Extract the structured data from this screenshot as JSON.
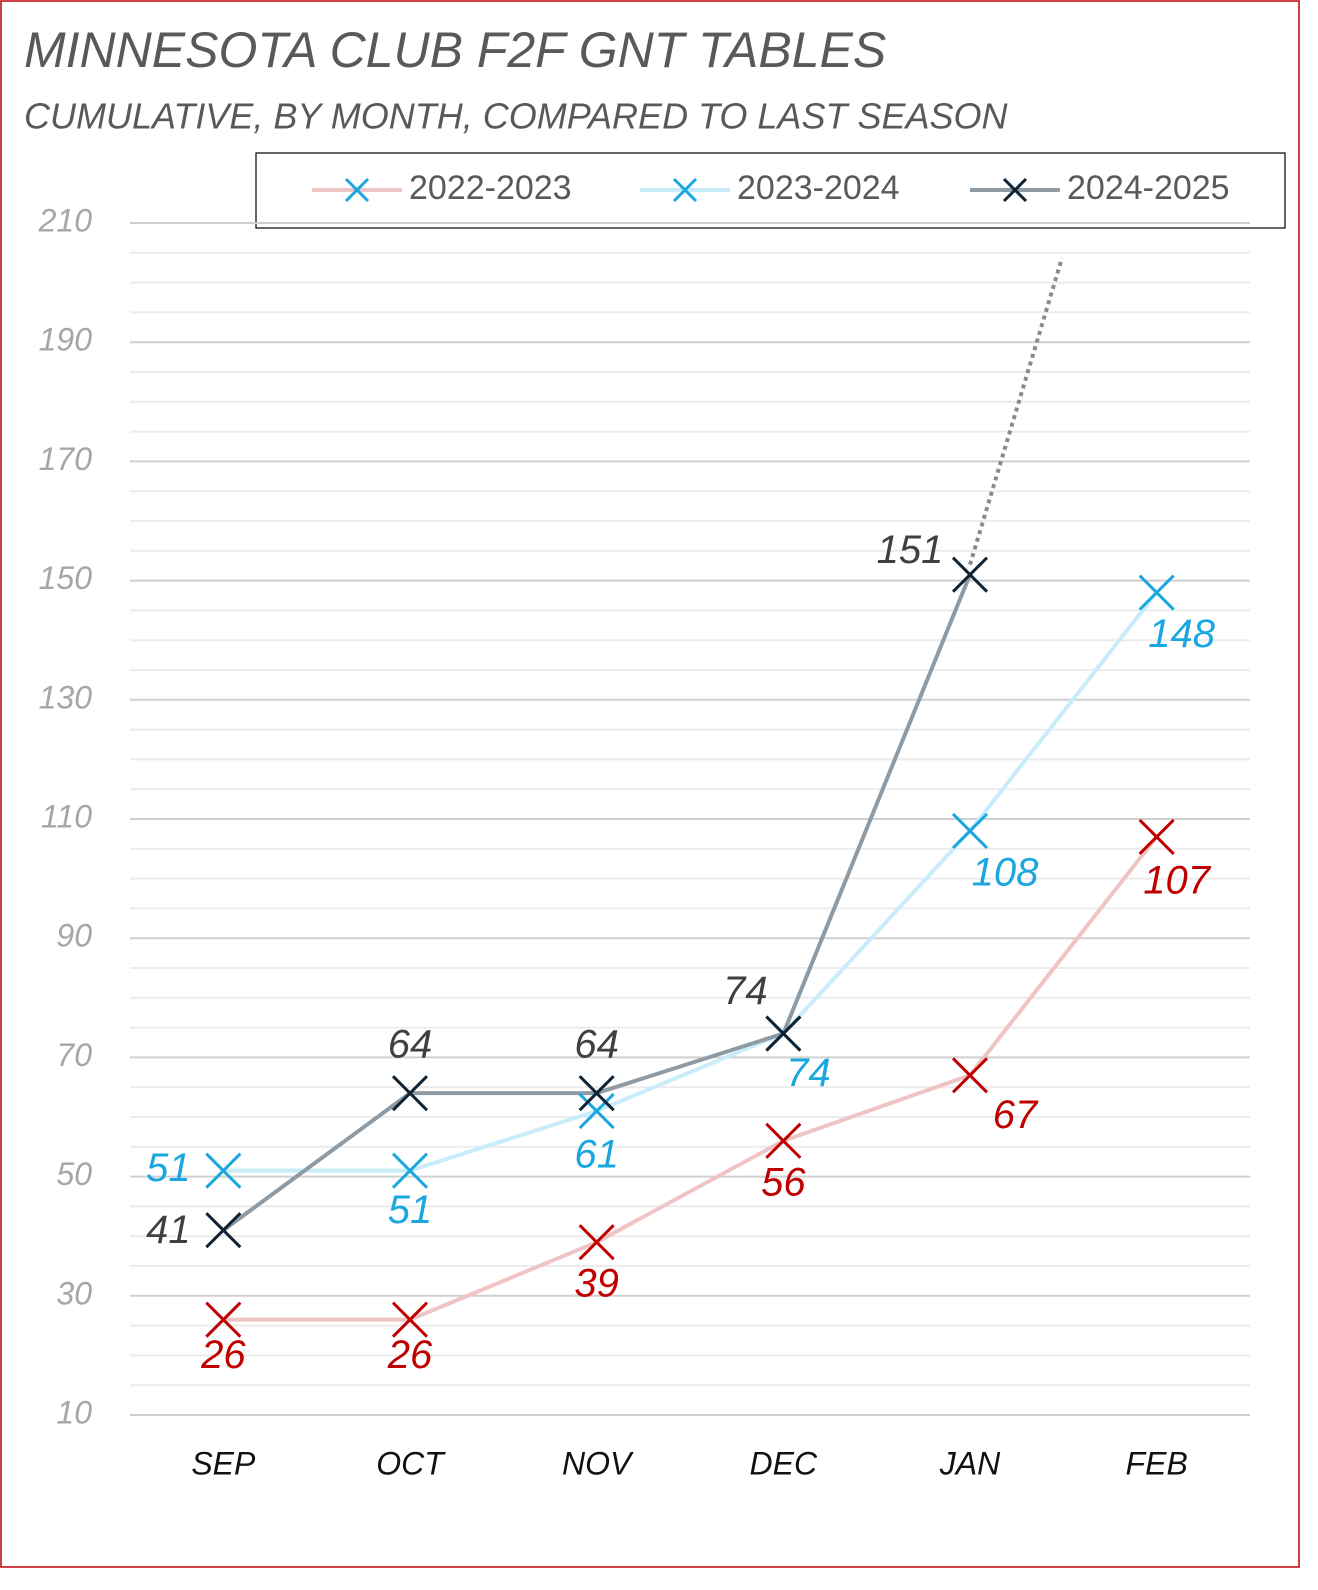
{
  "chart_data": {
    "type": "line",
    "title": "MINNESOTA CLUB F2F GNT TABLES",
    "subtitle": "CUMULATIVE, BY MONTH, COMPARED TO LAST SEASON",
    "categories": [
      "SEP",
      "OCT",
      "NOV",
      "DEC",
      "JAN",
      "FEB"
    ],
    "series": [
      {
        "name": "2022-2023",
        "color": "#f0c4c4",
        "marker_color": "#c00000",
        "legend_marker_color": "#1aa7e0",
        "values": [
          26,
          26,
          39,
          56,
          67,
          107
        ]
      },
      {
        "name": "2023-2024",
        "color": "#c9ecfa",
        "marker_color": "#1aa7e0",
        "legend_marker_color": "#1aa7e0",
        "values": [
          51,
          51,
          61,
          74,
          108,
          148
        ]
      },
      {
        "name": "2024-2025",
        "color": "#8e9ba4",
        "marker_color": "#0f2233",
        "label_color": "#404040",
        "legend_marker_color": "#0f2233",
        "values": [
          41,
          64,
          64,
          74,
          151,
          null
        ]
      }
    ],
    "ylim": [
      10,
      210
    ],
    "yticks": [
      10,
      30,
      50,
      70,
      90,
      110,
      130,
      150,
      170,
      190,
      210
    ],
    "grid": true,
    "minor_grid": true,
    "trendline": true,
    "legend": "top"
  }
}
